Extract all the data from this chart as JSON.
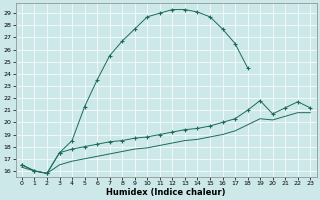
{
  "xlabel": "Humidex (Indice chaleur)",
  "background_color": "#cde8e8",
  "grid_color": "#b0d0d0",
  "line_color": "#1a6b5a",
  "xlim": [
    -0.5,
    23.5
  ],
  "ylim": [
    15.5,
    29.8
  ],
  "yticks": [
    16,
    17,
    18,
    19,
    20,
    21,
    22,
    23,
    24,
    25,
    26,
    27,
    28,
    29
  ],
  "xticks": [
    0,
    1,
    2,
    3,
    4,
    5,
    6,
    7,
    8,
    9,
    10,
    11,
    12,
    13,
    14,
    15,
    16,
    17,
    18,
    19,
    20,
    21,
    22,
    23
  ],
  "curve1_x": [
    0,
    1,
    2,
    3,
    4,
    5,
    6,
    7,
    8,
    9,
    10,
    11,
    12,
    13,
    14,
    15,
    16,
    17,
    18
  ],
  "curve1_y": [
    16.5,
    16.0,
    15.8,
    17.5,
    18.5,
    21.3,
    23.5,
    25.5,
    26.7,
    27.7,
    28.7,
    29.0,
    29.3,
    29.3,
    29.1,
    28.7,
    27.7,
    26.5,
    24.5
  ],
  "curve2_x": [
    0,
    1,
    2,
    3,
    4,
    5,
    6,
    7,
    8,
    9,
    10,
    11,
    12,
    13,
    14,
    15,
    16,
    17,
    18,
    19,
    20,
    21,
    22,
    23
  ],
  "curve2_y": [
    16.5,
    16.0,
    15.8,
    17.5,
    17.8,
    18.0,
    18.2,
    18.4,
    18.5,
    18.7,
    18.8,
    19.0,
    19.2,
    19.4,
    19.5,
    19.7,
    20.0,
    20.3,
    21.0,
    21.8,
    20.7,
    21.2,
    21.7,
    21.2
  ],
  "curve3_x": [
    0,
    1,
    2,
    3,
    4,
    5,
    6,
    7,
    8,
    9,
    10,
    11,
    12,
    13,
    14,
    15,
    16,
    17,
    18,
    19,
    20,
    21,
    22,
    23
  ],
  "curve3_y": [
    16.3,
    16.0,
    15.8,
    16.5,
    16.8,
    17.0,
    17.2,
    17.4,
    17.6,
    17.8,
    17.9,
    18.1,
    18.3,
    18.5,
    18.6,
    18.8,
    19.0,
    19.3,
    19.8,
    20.3,
    20.2,
    20.5,
    20.8,
    20.8
  ]
}
